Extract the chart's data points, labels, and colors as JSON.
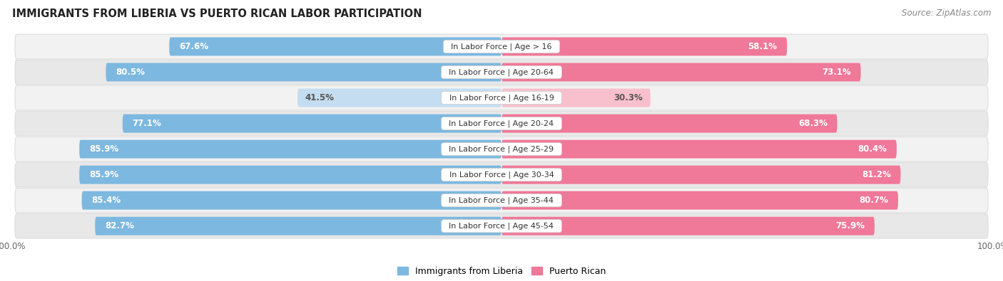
{
  "title": "IMMIGRANTS FROM LIBERIA VS PUERTO RICAN LABOR PARTICIPATION",
  "source": "Source: ZipAtlas.com",
  "categories": [
    "In Labor Force | Age > 16",
    "In Labor Force | Age 20-64",
    "In Labor Force | Age 16-19",
    "In Labor Force | Age 20-24",
    "In Labor Force | Age 25-29",
    "In Labor Force | Age 30-34",
    "In Labor Force | Age 35-44",
    "In Labor Force | Age 45-54"
  ],
  "liberia_values": [
    67.6,
    80.5,
    41.5,
    77.1,
    85.9,
    85.9,
    85.4,
    82.7
  ],
  "puerto_rican_values": [
    58.1,
    73.1,
    30.3,
    68.3,
    80.4,
    81.2,
    80.7,
    75.9
  ],
  "liberia_color": "#7db8e0",
  "liberia_color_light": "#c5ddf0",
  "puerto_rican_color": "#f07899",
  "puerto_rican_color_light": "#f8bfcc",
  "row_bg_color_odd": "#f2f2f2",
  "row_bg_color_even": "#e8e8e8",
  "row_border_color": "#dddddd",
  "label_color_dark": "#555555",
  "title_color": "#222222",
  "background_color": "#ffffff",
  "max_value": 100.0,
  "legend_liberia": "Immigrants from Liberia",
  "legend_puerto_rican": "Puerto Rican"
}
